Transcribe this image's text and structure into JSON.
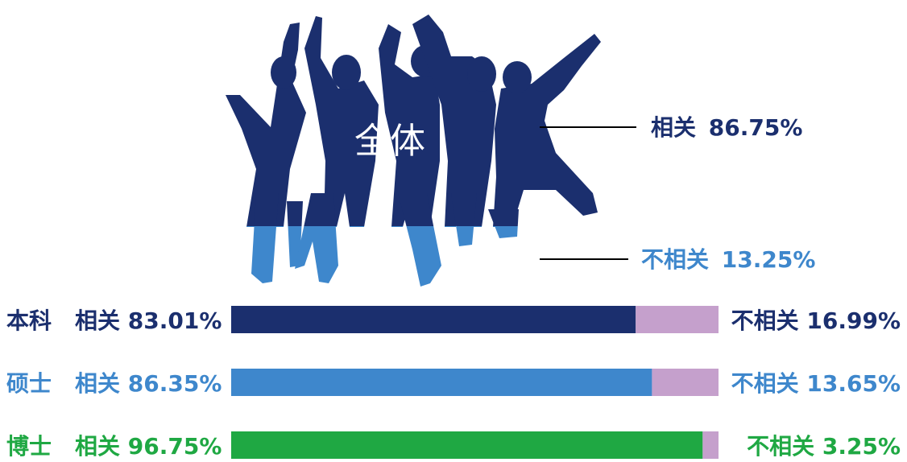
{
  "chart_data": {
    "type": "bar",
    "overall": {
      "label": "全体",
      "related_label": "相关",
      "related_value": 86.75,
      "related_text": "86.75%",
      "unrelated_label": "不相关",
      "unrelated_value": 13.25,
      "unrelated_text": "13.25%"
    },
    "categories": [
      "本科",
      "硕士",
      "博士"
    ],
    "series": [
      {
        "name": "相关",
        "values": [
          83.01,
          86.35,
          96.75
        ],
        "texts": [
          "83.01%",
          "86.35%",
          "96.75%"
        ]
      },
      {
        "name": "不相关",
        "values": [
          16.99,
          13.65,
          3.25
        ],
        "texts": [
          "16.99%",
          "13.65%",
          "3.25%"
        ]
      }
    ],
    "related_label": "相关",
    "unrelated_label": "不相关",
    "colors": {
      "bachelor": "#1b2f6e",
      "master": "#3e87cc",
      "phd": "#1fa843",
      "unrelated": "#c5a0cc",
      "silhouette_top": "#1b2f6e",
      "silhouette_bottom": "#3e87cc"
    },
    "icons": [
      "jumping-people-silhouette-icon"
    ]
  }
}
